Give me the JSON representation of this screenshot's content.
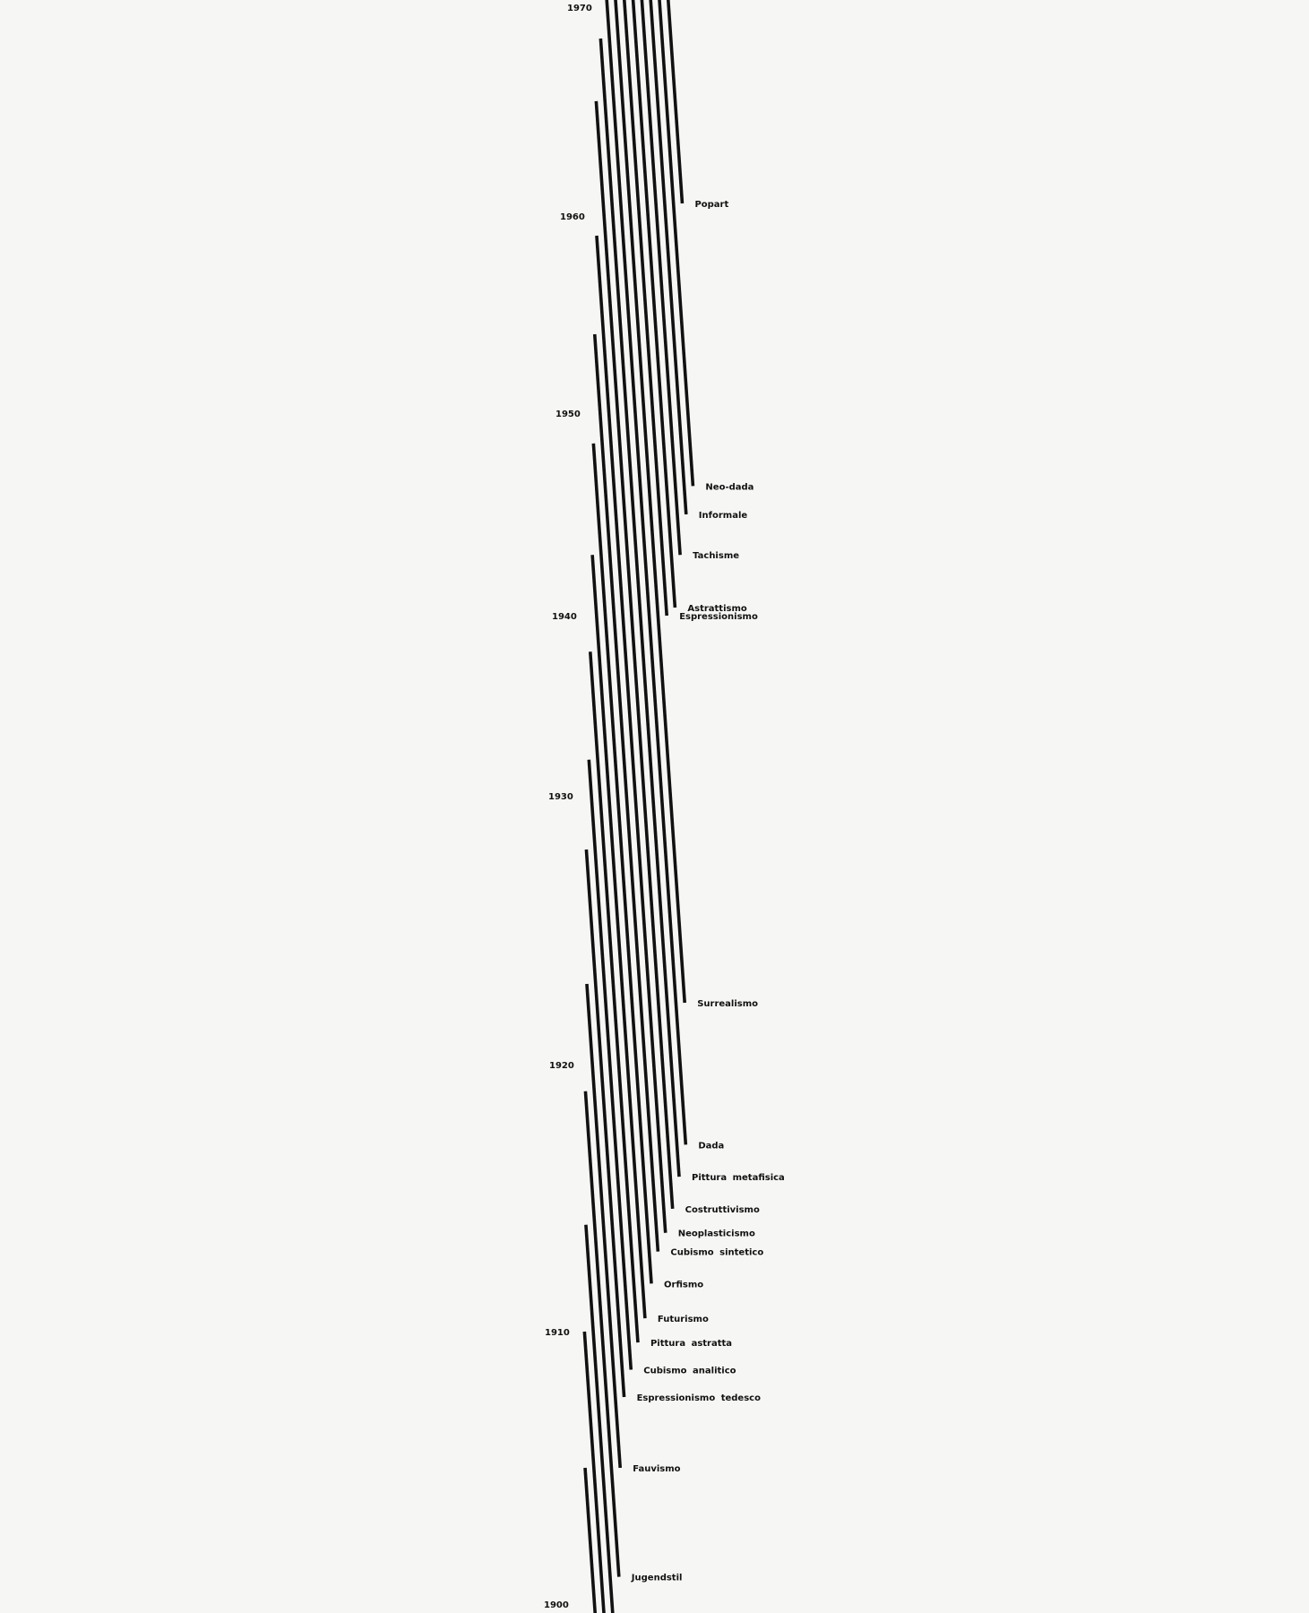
{
  "chart_data": {
    "type": "timeline",
    "axis": {
      "ticks": [
        "1970",
        "1960",
        "1950",
        "1940",
        "1930",
        "1920",
        "1910",
        "1900"
      ],
      "range": [
        1900,
        1970
      ]
    },
    "line_color": "#111111",
    "background": "#f6f6f4",
    "lines": [
      {
        "label": "",
        "start": null,
        "end": 1905
      },
      {
        "label": "",
        "start": null,
        "end": 1910
      },
      {
        "label": "",
        "start": null,
        "end": 1914
      },
      {
        "label": "Jugendstil",
        "start": 1901,
        "end": 1919
      },
      {
        "label": "Fauvismo",
        "start": 1905,
        "end": 1923
      },
      {
        "label": "Espressionismo  tedesco",
        "start": 1907.6,
        "end": 1928
      },
      {
        "label": "Cubismo  analitico",
        "start": 1908.6,
        "end": 1932
      },
      {
        "label": "Pittura  astratta",
        "start": 1909.6,
        "end": 1938
      },
      {
        "label": "Futurismo",
        "start": 1910.5,
        "end": 1943
      },
      {
        "label": "Orfismo",
        "start": 1911.8,
        "end": 1948.5
      },
      {
        "label": "Cubismo  sintetico",
        "start": 1913,
        "end": 1954
      },
      {
        "label": "Neoplasticismo",
        "start": 1913.7,
        "end": 1959
      },
      {
        "label": "Costruttivismo",
        "start": 1914.6,
        "end": 1965.5
      },
      {
        "label": "Pittura  metafisica",
        "start": 1915.8,
        "end": 1968.5
      },
      {
        "label": "Dada",
        "start": 1917,
        "end": null
      },
      {
        "label": "Surrealismo",
        "start": 1922.3,
        "end": null
      },
      {
        "label": "Espressionismo",
        "start": 1940,
        "end": null
      },
      {
        "label": "Astrattismo",
        "start": 1940.4,
        "end": null
      },
      {
        "label": "Tachisme",
        "start": 1943,
        "end": null
      },
      {
        "label": "Informale",
        "start": 1945,
        "end": null
      },
      {
        "label": "Neo-dada",
        "start": 1946.4,
        "end": null
      },
      {
        "label": "Popart",
        "start": 1960.6,
        "end": null
      }
    ]
  }
}
